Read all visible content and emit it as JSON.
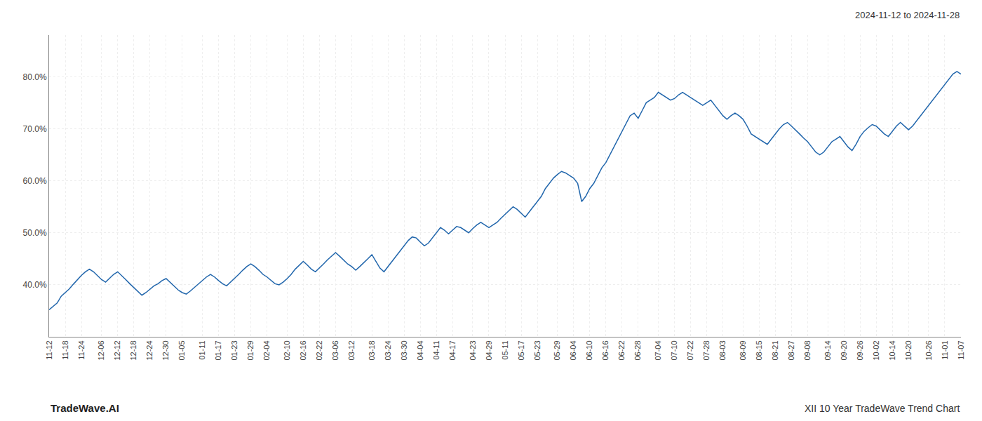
{
  "chart_data": {
    "type": "line",
    "title": "XII 10 Year TradeWave Trend Chart",
    "subtitle": "2024-11-12 to 2024-11-28",
    "annotations": [
      "TradeWave.AI"
    ],
    "color": "#2166ac",
    "grid": true,
    "ylim": [
      30.0,
      88.0
    ],
    "yticks": [
      {
        "value": 40.0,
        "label": "40.0%"
      },
      {
        "value": 50.0,
        "label": "50.0%"
      },
      {
        "value": 60.0,
        "label": "60.0%"
      },
      {
        "value": 70.0,
        "label": "70.0%"
      },
      {
        "value": 80.0,
        "label": "80.0%"
      }
    ],
    "categories": [
      "11-12",
      null,
      null,
      null,
      "11-18",
      null,
      null,
      null,
      "11-24",
      null,
      null,
      null,
      null,
      "12-06",
      null,
      null,
      null,
      "12-12",
      null,
      null,
      null,
      "12-18",
      null,
      null,
      null,
      "12-24",
      null,
      null,
      null,
      "12-30",
      null,
      null,
      null,
      "01-05",
      null,
      null,
      null,
      null,
      "01-11",
      null,
      null,
      null,
      "01-17",
      null,
      null,
      null,
      "01-23",
      null,
      null,
      null,
      "01-29",
      null,
      null,
      null,
      "02-04",
      null,
      null,
      null,
      null,
      "02-10",
      null,
      null,
      null,
      "02-16",
      null,
      null,
      null,
      "02-22",
      null,
      null,
      null,
      "03-06",
      null,
      null,
      null,
      "03-12",
      null,
      null,
      null,
      null,
      "03-18",
      null,
      null,
      null,
      "03-24",
      null,
      null,
      null,
      "03-30",
      null,
      null,
      null,
      "04-04",
      null,
      null,
      null,
      "04-11",
      null,
      null,
      null,
      "04-17",
      null,
      null,
      null,
      null,
      "04-23",
      null,
      null,
      null,
      "04-29",
      null,
      null,
      null,
      "05-11",
      null,
      null,
      null,
      "05-17",
      null,
      null,
      null,
      "05-23",
      null,
      null,
      null,
      null,
      "05-29",
      null,
      null,
      null,
      "06-04",
      null,
      null,
      null,
      "06-10",
      null,
      null,
      null,
      "06-16",
      null,
      null,
      null,
      "06-22",
      null,
      null,
      null,
      "06-28",
      null,
      null,
      null,
      null,
      "07-04",
      null,
      null,
      null,
      "07-10",
      null,
      null,
      null,
      "07-22",
      null,
      null,
      null,
      "07-28",
      null,
      null,
      null,
      "08-03",
      null,
      null,
      null,
      null,
      "08-09",
      null,
      null,
      null,
      "08-15",
      null,
      null,
      null,
      "08-21",
      null,
      null,
      null,
      "08-27",
      null,
      null,
      null,
      "09-08",
      null,
      null,
      null,
      null,
      "09-14",
      null,
      null,
      null,
      "09-20",
      null,
      null,
      null,
      "09-26",
      null,
      null,
      null,
      "10-02",
      null,
      null,
      null,
      "10-14",
      null,
      null,
      null,
      "10-20",
      null,
      null,
      null,
      null,
      "10-26",
      null,
      null,
      null,
      "11-01",
      null,
      null,
      null,
      "11-07"
    ],
    "values": [
      35.2,
      35.8,
      36.5,
      37.8,
      38.5,
      39.2,
      40.1,
      41.0,
      41.8,
      42.5,
      43.0,
      42.5,
      41.8,
      41.0,
      40.5,
      41.2,
      42.0,
      42.5,
      41.8,
      41.0,
      40.2,
      39.5,
      38.8,
      38.0,
      38.5,
      39.2,
      39.8,
      40.2,
      40.8,
      41.2,
      40.5,
      39.8,
      39.0,
      38.5,
      38.2,
      38.8,
      39.5,
      40.2,
      40.8,
      41.5,
      42.0,
      41.5,
      40.8,
      40.2,
      39.8,
      40.5,
      41.2,
      42.0,
      42.8,
      43.5,
      44.0,
      43.5,
      42.8,
      42.0,
      41.5,
      40.8,
      40.2,
      40.0,
      40.5,
      41.2,
      42.0,
      43.0,
      43.8,
      44.5,
      43.8,
      43.0,
      42.5,
      43.2,
      44.0,
      44.8,
      45.5,
      46.2,
      45.5,
      44.8,
      44.0,
      43.5,
      42.8,
      43.5,
      44.2,
      45.0,
      45.8,
      44.5,
      43.2,
      42.5,
      43.5,
      44.5,
      45.5,
      46.5,
      47.5,
      48.5,
      49.2,
      49.0,
      48.2,
      47.5,
      48.0,
      49.0,
      50.0,
      51.0,
      50.5,
      49.8,
      50.5,
      51.2,
      51.0,
      50.5,
      50.0,
      50.8,
      51.5,
      52.0,
      51.5,
      51.0,
      51.5,
      52.0,
      52.8,
      53.5,
      54.2,
      55.0,
      54.5,
      53.8,
      53.0,
      54.0,
      55.0,
      56.0,
      57.0,
      58.5,
      59.5,
      60.5,
      61.2,
      61.8,
      61.5,
      61.0,
      60.5,
      59.5,
      56.0,
      57.0,
      58.5,
      59.5,
      61.0,
      62.5,
      63.5,
      65.0,
      66.5,
      68.0,
      69.5,
      71.0,
      72.5,
      73.0,
      72.0,
      73.5,
      75.0,
      75.5,
      76.0,
      77.0,
      76.5,
      76.0,
      75.5,
      75.8,
      76.5,
      77.0,
      76.5,
      76.0,
      75.5,
      75.0,
      74.5,
      75.0,
      75.5,
      74.5,
      73.5,
      72.5,
      71.8,
      72.5,
      73.0,
      72.5,
      71.8,
      70.5,
      69.0,
      68.5,
      68.0,
      67.5,
      67.0,
      68.0,
      69.0,
      70.0,
      70.8,
      71.2,
      70.5,
      69.8,
      69.0,
      68.2,
      67.5,
      66.5,
      65.5,
      65.0,
      65.5,
      66.5,
      67.5,
      68.0,
      68.5,
      67.5,
      66.5,
      65.8,
      67.0,
      68.5,
      69.5,
      70.2,
      70.8,
      70.5,
      69.8,
      69.0,
      68.5,
      69.5,
      70.5,
      71.2,
      70.5,
      69.8,
      70.5,
      71.5,
      72.5,
      73.5,
      74.5,
      75.5,
      76.5,
      77.5,
      78.5,
      79.5,
      80.5,
      81.0,
      80.5
    ]
  }
}
